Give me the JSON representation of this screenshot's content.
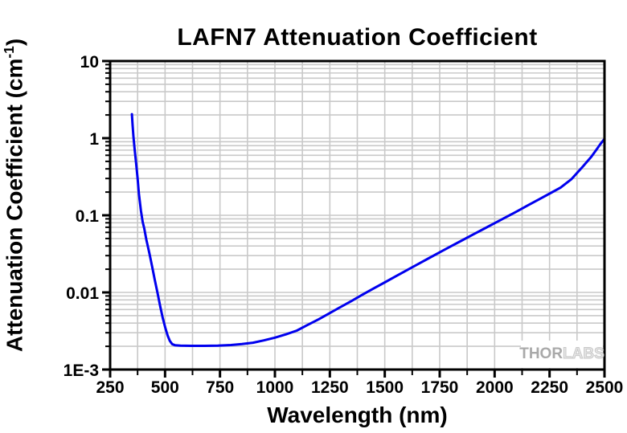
{
  "colors": {
    "curve": "#0000ee",
    "grid": "#c9c9c9",
    "axis": "#000000",
    "background": "#ffffff",
    "watermark_solid": "#a9a9a9",
    "watermark_outline": "#c8c8c8"
  },
  "watermark": {
    "part1": "THOR",
    "part2": "LABS"
  },
  "chart_data": {
    "type": "line",
    "title": "LAFN7 Attenuation Coefficient",
    "xlabel": "Wavelength (nm)",
    "ylabel": "Attenuation Coefficient (cm⁻¹)",
    "ylabel_parts": {
      "main": "Attenuation Coefficient (cm",
      "sup": "-1",
      "close": ")"
    },
    "x_axis": {
      "min": 250,
      "max": 2500,
      "scale": "linear",
      "major_ticks": [
        250,
        500,
        750,
        1000,
        1250,
        1500,
        1750,
        2000,
        2250,
        2500
      ],
      "minor_step": 125
    },
    "y_axis": {
      "min": 0.001,
      "max": 10,
      "scale": "log",
      "ticks": [
        {
          "label": "10",
          "value": 10
        },
        {
          "label": "1",
          "value": 1
        },
        {
          "label": "0.1",
          "value": 0.1
        },
        {
          "label": "0.01",
          "value": 0.01
        },
        {
          "label": "1E-3",
          "value": 0.001
        }
      ]
    },
    "grid": {
      "shown": true,
      "x_every_nm": 125,
      "y_log_minors": true
    },
    "legend": {
      "shown": false
    },
    "series": [
      {
        "name": "LAFN7 attenuation coefficient",
        "color": "#0000ee",
        "points": [
          [
            349,
            2.05
          ],
          [
            352,
            1.5
          ],
          [
            356,
            1.05
          ],
          [
            362,
            0.7
          ],
          [
            368,
            0.475
          ],
          [
            375,
            0.3
          ],
          [
            381,
            0.19
          ],
          [
            390,
            0.115
          ],
          [
            398,
            0.082
          ],
          [
            405,
            0.068
          ],
          [
            415,
            0.048
          ],
          [
            429,
            0.032
          ],
          [
            442,
            0.021
          ],
          [
            453,
            0.0146
          ],
          [
            466,
            0.0098
          ],
          [
            478,
            0.0066
          ],
          [
            490,
            0.0046
          ],
          [
            502,
            0.0034
          ],
          [
            512,
            0.00275
          ],
          [
            522,
            0.00235
          ],
          [
            532,
            0.00214
          ],
          [
            545,
            0.00207
          ],
          [
            570,
            0.00204
          ],
          [
            620,
            0.00203
          ],
          [
            680,
            0.00203
          ],
          [
            740,
            0.00204
          ],
          [
            800,
            0.00208
          ],
          [
            850,
            0.00214
          ],
          [
            900,
            0.00223
          ],
          [
            950,
            0.00239
          ],
          [
            1000,
            0.00259
          ],
          [
            1050,
            0.00286
          ],
          [
            1100,
            0.0032
          ],
          [
            1150,
            0.0038
          ],
          [
            1200,
            0.0045
          ],
          [
            1250,
            0.0054
          ],
          [
            1300,
            0.0065
          ],
          [
            1350,
            0.0078
          ],
          [
            1400,
            0.0094
          ],
          [
            1450,
            0.0113
          ],
          [
            1500,
            0.0135
          ],
          [
            1550,
            0.0162
          ],
          [
            1600,
            0.0194
          ],
          [
            1650,
            0.0232
          ],
          [
            1700,
            0.0277
          ],
          [
            1750,
            0.0331
          ],
          [
            1800,
            0.0395
          ],
          [
            1850,
            0.047
          ],
          [
            1900,
            0.056
          ],
          [
            1950,
            0.0665
          ],
          [
            2000,
            0.079
          ],
          [
            2050,
            0.094
          ],
          [
            2100,
            0.112
          ],
          [
            2150,
            0.134
          ],
          [
            2200,
            0.16
          ],
          [
            2250,
            0.191
          ],
          [
            2300,
            0.228
          ],
          [
            2350,
            0.295
          ],
          [
            2400,
            0.425
          ],
          [
            2440,
            0.575
          ],
          [
            2465,
            0.72
          ],
          [
            2480,
            0.83
          ],
          [
            2500,
            0.98
          ]
        ]
      }
    ]
  }
}
